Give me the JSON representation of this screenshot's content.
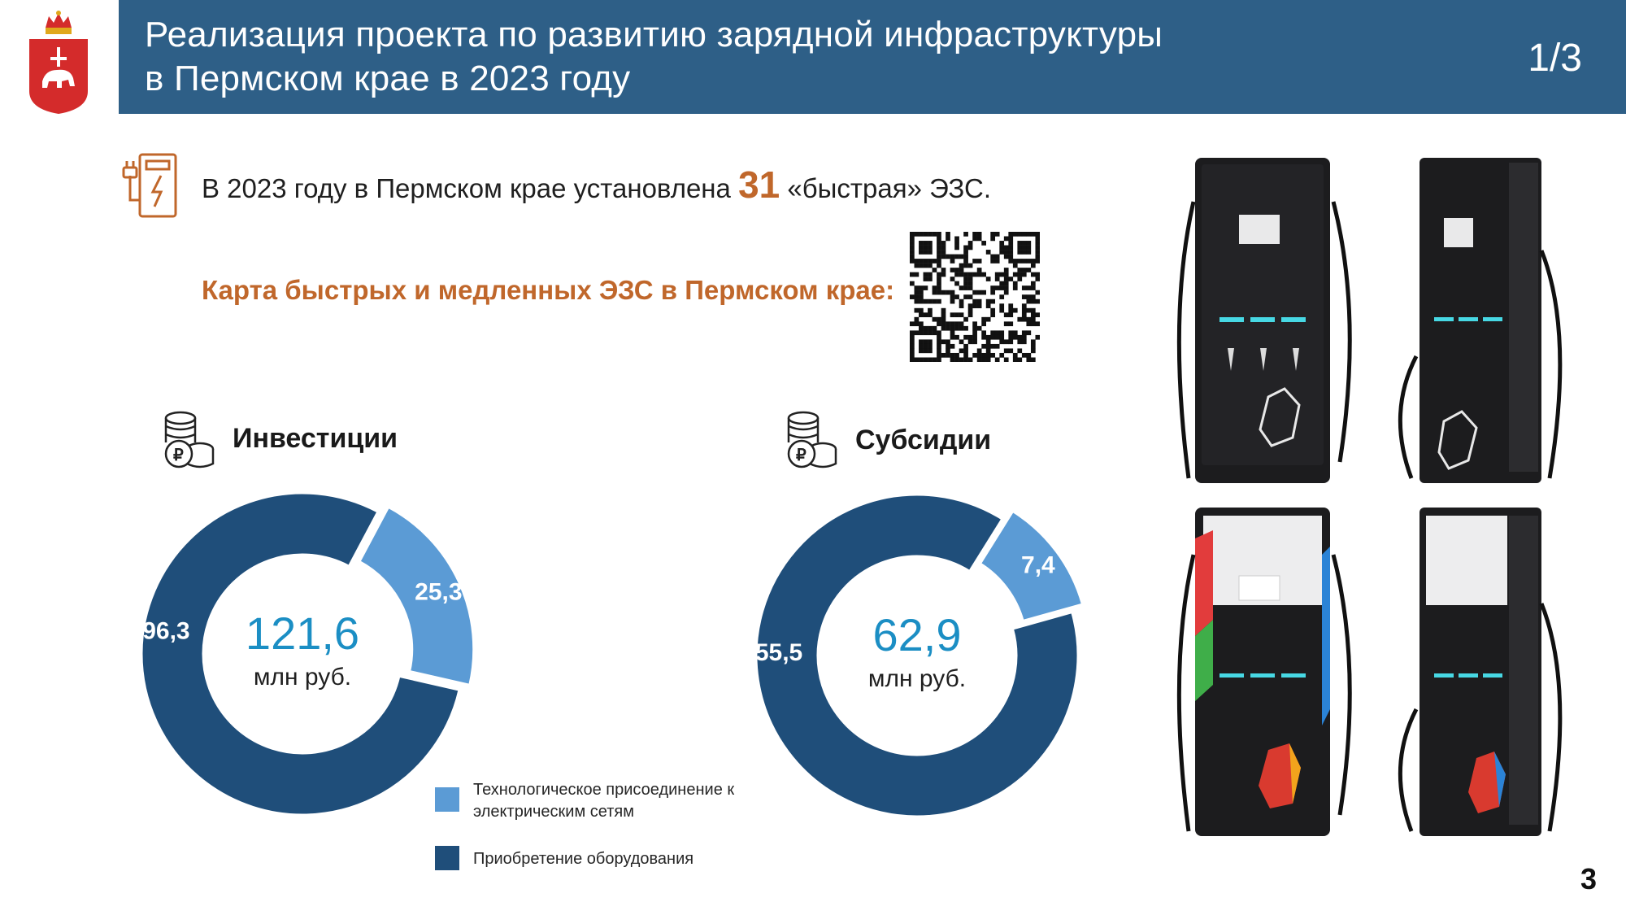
{
  "header": {
    "title_line1": "Реализация проекта по развитию зарядной инфраструктуры",
    "title_line2": "в Пермском крае в 2023 году",
    "page_counter": "1/3"
  },
  "intro": {
    "prefix": "В 2023 году в Пермском крае установлена ",
    "count": "31",
    "suffix": " «быстрая» ЭЗС."
  },
  "map_link_label": "Карта быстрых и медленных ЭЗС в Пермском крае:",
  "investments": {
    "title": "Инвестиции",
    "total": "121,6",
    "unit": "млн руб."
  },
  "subsidies": {
    "title": "Субсидии",
    "total": "62,9",
    "unit": "млн руб."
  },
  "legend": {
    "light": "Технологическое присоединение к электрическим сетям",
    "dark": "Приобретение оборудования"
  },
  "colors": {
    "header_bg": "#2e5f87",
    "accent_orange": "#c0672b",
    "series_dark": "#1f4e7a",
    "series_light": "#5b9bd5",
    "total_blue": "#1b8ec4"
  },
  "chart_data": [
    {
      "type": "pie",
      "title": "Инвестиции",
      "center_label": "121,6",
      "unit": "млн руб.",
      "series": [
        {
          "name": "Приобретение оборудования",
          "value": 96.3,
          "label": "96,3",
          "color": "#1f4e7a"
        },
        {
          "name": "Технологическое присоединение к электрическим сетям",
          "value": 25.3,
          "label": "25,3",
          "color": "#5b9bd5"
        }
      ]
    },
    {
      "type": "pie",
      "title": "Субсидии",
      "center_label": "62,9",
      "unit": "млн руб.",
      "series": [
        {
          "name": "Приобретение оборудования",
          "value": 55.5,
          "label": "55,5",
          "color": "#1f4e7a"
        },
        {
          "name": "Технологическое присоединение к электрическим сетям",
          "value": 7.4,
          "label": "7,4",
          "color": "#5b9bd5"
        }
      ]
    }
  ],
  "icons": [
    "perm-krai-emblem-icon",
    "charging-station-icon",
    "qr-code-icon",
    "coins-ruble-icon"
  ],
  "page_number": "3"
}
